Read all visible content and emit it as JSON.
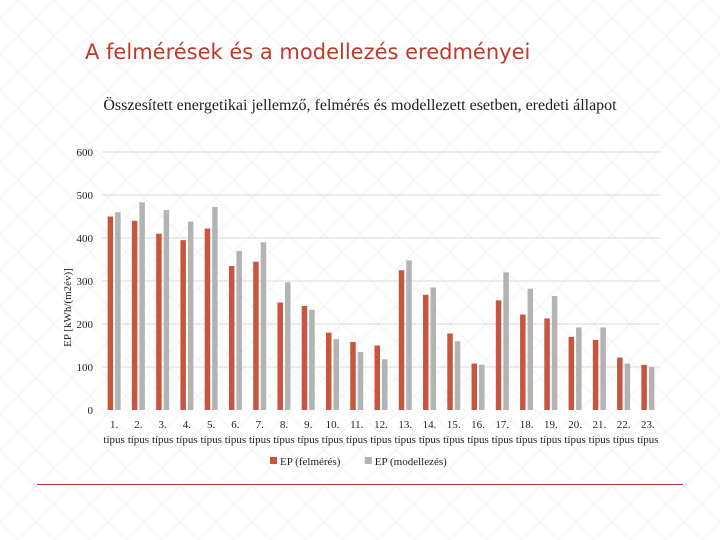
{
  "slide": {
    "title": "A felmérések és a modellezés eredményei",
    "accent_color": "#c0392b"
  },
  "chart_data": {
    "type": "bar",
    "title": "Összesített energetikai jellemző, felmérés és modellezett esetben, eredeti állapot",
    "xlabel": "",
    "ylabel": "EP [kWh/(m2év)]",
    "ylim": [
      0,
      600
    ],
    "yticks": [
      0,
      100,
      200,
      300,
      400,
      500,
      600
    ],
    "grid": true,
    "legend_position": "bottom",
    "categories": [
      "1.",
      "2.",
      "3.",
      "4.",
      "5.",
      "6.",
      "7.",
      "8.",
      "9.",
      "10.",
      "11.",
      "12.",
      "13.",
      "14.",
      "15.",
      "16.",
      "17.",
      "18.",
      "19.",
      "20.",
      "21.",
      "22.",
      "23."
    ],
    "category_suffixes": [
      "típus",
      "típus",
      "típus",
      "típus",
      "típus",
      "típus",
      "típus",
      "típus",
      "típus",
      "típus",
      "típus",
      "típus",
      "típus",
      "típus",
      "típus",
      "típus",
      "típus",
      "típus",
      "típus",
      "típus",
      "típus",
      "típus",
      "típus"
    ],
    "series": [
      {
        "name": "EP (felmérés)",
        "color": "#c8553d",
        "values": [
          450,
          440,
          410,
          395,
          422,
          335,
          345,
          250,
          242,
          180,
          158,
          150,
          325,
          268,
          178,
          108,
          255,
          222,
          213,
          170,
          163,
          122,
          105
        ]
      },
      {
        "name": "EP (modellezés)",
        "color": "#b3b3b3",
        "values": [
          460,
          483,
          465,
          438,
          472,
          370,
          390,
          297,
          233,
          165,
          135,
          118,
          348,
          285,
          160,
          105,
          320,
          282,
          265,
          192,
          192,
          108,
          100
        ]
      }
    ]
  }
}
